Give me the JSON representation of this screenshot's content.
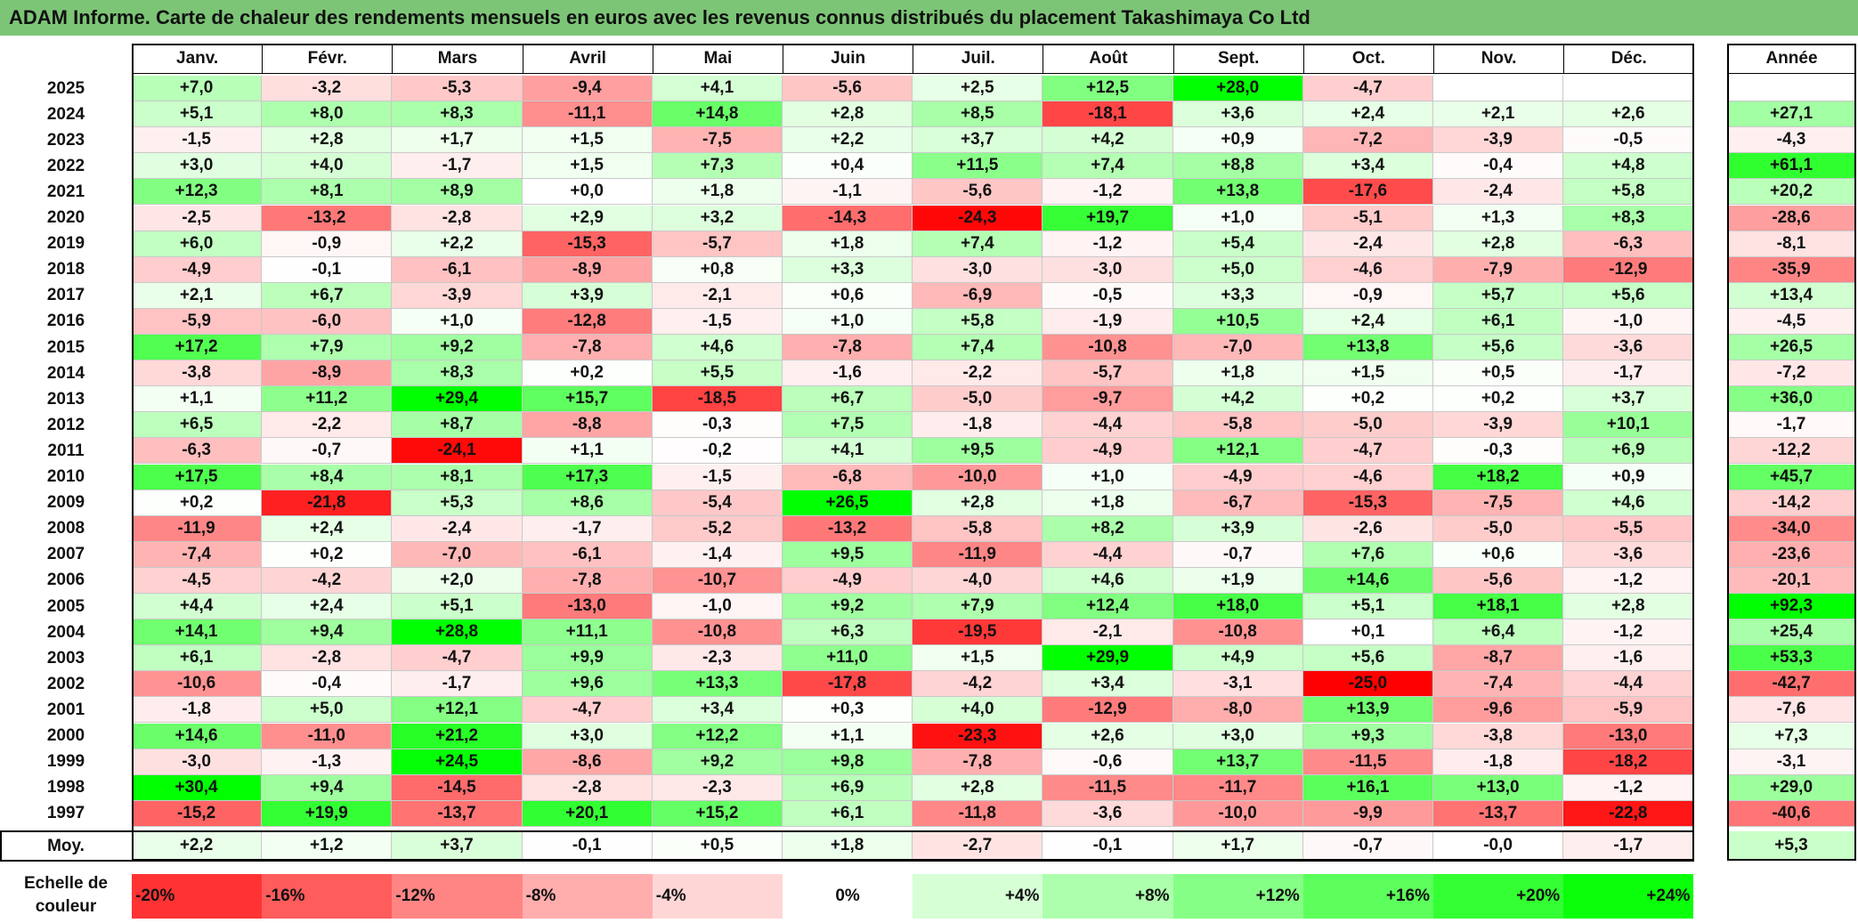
{
  "title": "ADAM Informe. Carte de chaleur des rendements mensuels en euros avec les revenus connus distribués du placement Takashimaya Co Ltd",
  "chart_data": {
    "type": "heatmap",
    "title": "ADAM Informe. Carte de chaleur des rendements mensuels en euros avec les revenus connus distribués du placement Takashimaya Co Ltd",
    "columns": [
      "Janv.",
      "Févr.",
      "Mars",
      "Avril",
      "Mai",
      "Juin",
      "Juil.",
      "Août",
      "Sept.",
      "Oct.",
      "Nov.",
      "Déc."
    ],
    "year_header": "Année",
    "rows": [
      {
        "year": "2025",
        "values": [
          "+7,0",
          "-3,2",
          "-5,3",
          "-9,4",
          "+4,1",
          "-5,6",
          "+2,5",
          "+12,5",
          "+28,0",
          "-4,7",
          "",
          ""
        ],
        "annual": ""
      },
      {
        "year": "2024",
        "values": [
          "+5,1",
          "+8,0",
          "+8,3",
          "-11,1",
          "+14,8",
          "+2,8",
          "+8,5",
          "-18,1",
          "+3,6",
          "+2,4",
          "+2,1",
          "+2,6"
        ],
        "annual": "+27,1"
      },
      {
        "year": "2023",
        "values": [
          "-1,5",
          "+2,8",
          "+1,7",
          "+1,5",
          "-7,5",
          "+2,2",
          "+3,7",
          "+4,2",
          "+0,9",
          "-7,2",
          "-3,9",
          "-0,5"
        ],
        "annual": "-4,3"
      },
      {
        "year": "2022",
        "values": [
          "+3,0",
          "+4,0",
          "-1,7",
          "+1,5",
          "+7,3",
          "+0,4",
          "+11,5",
          "+7,4",
          "+8,8",
          "+3,4",
          "-0,4",
          "+4,8"
        ],
        "annual": "+61,1"
      },
      {
        "year": "2021",
        "values": [
          "+12,3",
          "+8,1",
          "+8,9",
          "+0,0",
          "+1,8",
          "-1,1",
          "-5,6",
          "-1,2",
          "+13,8",
          "-17,6",
          "-2,4",
          "+5,8"
        ],
        "annual": "+20,2"
      },
      {
        "year": "2020",
        "values": [
          "-2,5",
          "-13,2",
          "-2,8",
          "+2,9",
          "+3,2",
          "-14,3",
          "-24,3",
          "+19,7",
          "+1,0",
          "-5,1",
          "+1,3",
          "+8,3"
        ],
        "annual": "-28,6"
      },
      {
        "year": "2019",
        "values": [
          "+6,0",
          "-0,9",
          "+2,2",
          "-15,3",
          "-5,7",
          "+1,8",
          "+7,4",
          "-1,2",
          "+5,4",
          "-2,4",
          "+2,8",
          "-6,3"
        ],
        "annual": "-8,1"
      },
      {
        "year": "2018",
        "values": [
          "-4,9",
          "-0,1",
          "-6,1",
          "-8,9",
          "+0,8",
          "+3,3",
          "-3,0",
          "-3,0",
          "+5,0",
          "-4,6",
          "-7,9",
          "-12,9"
        ],
        "annual": "-35,9"
      },
      {
        "year": "2017",
        "values": [
          "+2,1",
          "+6,7",
          "-3,9",
          "+3,9",
          "-2,1",
          "+0,6",
          "-6,9",
          "-0,5",
          "+3,3",
          "-0,9",
          "+5,7",
          "+5,6"
        ],
        "annual": "+13,4"
      },
      {
        "year": "2016",
        "values": [
          "-5,9",
          "-6,0",
          "+1,0",
          "-12,8",
          "-1,5",
          "+1,0",
          "+5,8",
          "-1,9",
          "+10,5",
          "+2,4",
          "+6,1",
          "-1,0"
        ],
        "annual": "-4,5"
      },
      {
        "year": "2015",
        "values": [
          "+17,2",
          "+7,9",
          "+9,2",
          "-7,8",
          "+4,6",
          "-7,8",
          "+7,4",
          "-10,8",
          "-7,0",
          "+13,8",
          "+5,6",
          "-3,6"
        ],
        "annual": "+26,5"
      },
      {
        "year": "2014",
        "values": [
          "-3,8",
          "-8,9",
          "+8,3",
          "+0,2",
          "+5,5",
          "-1,6",
          "-2,2",
          "-5,7",
          "+1,8",
          "+1,5",
          "+0,5",
          "-1,7"
        ],
        "annual": "-7,2"
      },
      {
        "year": "2013",
        "values": [
          "+1,1",
          "+11,2",
          "+29,4",
          "+15,7",
          "-18,5",
          "+6,7",
          "-5,0",
          "-9,7",
          "+4,2",
          "+0,2",
          "+0,2",
          "+3,7"
        ],
        "annual": "+36,0"
      },
      {
        "year": "2012",
        "values": [
          "+6,5",
          "-2,2",
          "+8,7",
          "-8,8",
          "-0,3",
          "+7,5",
          "-1,8",
          "-4,4",
          "-5,8",
          "-5,0",
          "-3,9",
          "+10,1"
        ],
        "annual": "-1,7"
      },
      {
        "year": "2011",
        "values": [
          "-6,3",
          "-0,7",
          "-24,1",
          "+1,1",
          "-0,2",
          "+4,1",
          "+9,5",
          "-4,9",
          "+12,1",
          "-4,7",
          "-0,3",
          "+6,9"
        ],
        "annual": "-12,2"
      },
      {
        "year": "2010",
        "values": [
          "+17,5",
          "+8,4",
          "+8,1",
          "+17,3",
          "-1,5",
          "-6,8",
          "-10,0",
          "+1,0",
          "-4,9",
          "-4,6",
          "+18,2",
          "+0,9"
        ],
        "annual": "+45,7"
      },
      {
        "year": "2009",
        "values": [
          "+0,2",
          "-21,8",
          "+5,3",
          "+8,6",
          "-5,4",
          "+26,5",
          "+2,8",
          "+1,8",
          "-6,7",
          "-15,3",
          "-7,5",
          "+4,6"
        ],
        "annual": "-14,2"
      },
      {
        "year": "2008",
        "values": [
          "-11,9",
          "+2,4",
          "-2,4",
          "-1,7",
          "-5,2",
          "-13,2",
          "-5,8",
          "+8,2",
          "+3,9",
          "-2,6",
          "-5,0",
          "-5,5"
        ],
        "annual": "-34,0"
      },
      {
        "year": "2007",
        "values": [
          "-7,4",
          "+0,2",
          "-7,0",
          "-6,1",
          "-1,4",
          "+9,5",
          "-11,9",
          "-4,4",
          "-0,7",
          "+7,6",
          "+0,6",
          "-3,6"
        ],
        "annual": "-23,6"
      },
      {
        "year": "2006",
        "values": [
          "-4,5",
          "-4,2",
          "+2,0",
          "-7,8",
          "-10,7",
          "-4,9",
          "-4,0",
          "+4,6",
          "+1,9",
          "+14,6",
          "-5,6",
          "-1,2"
        ],
        "annual": "-20,1"
      },
      {
        "year": "2005",
        "values": [
          "+4,4",
          "+2,4",
          "+5,1",
          "-13,0",
          "-1,0",
          "+9,2",
          "+7,9",
          "+12,4",
          "+18,0",
          "+5,1",
          "+18,1",
          "+2,8"
        ],
        "annual": "+92,3"
      },
      {
        "year": "2004",
        "values": [
          "+14,1",
          "+9,4",
          "+28,8",
          "+11,1",
          "-10,8",
          "+6,3",
          "-19,5",
          "-2,1",
          "-10,8",
          "+0,1",
          "+6,4",
          "-1,2"
        ],
        "annual": "+25,4"
      },
      {
        "year": "2003",
        "values": [
          "+6,1",
          "-2,8",
          "-4,7",
          "+9,9",
          "-2,3",
          "+11,0",
          "+1,5",
          "+29,9",
          "+4,9",
          "+5,6",
          "-8,7",
          "-1,6"
        ],
        "annual": "+53,3"
      },
      {
        "year": "2002",
        "values": [
          "-10,6",
          "-0,4",
          "-1,7",
          "+9,6",
          "+13,3",
          "-17,8",
          "-4,2",
          "+3,4",
          "-3,1",
          "-25,0",
          "-7,4",
          "-4,4"
        ],
        "annual": "-42,7"
      },
      {
        "year": "2001",
        "values": [
          "-1,8",
          "+5,0",
          "+12,1",
          "-4,7",
          "+3,4",
          "+0,3",
          "+4,0",
          "-12,9",
          "-8,0",
          "+13,9",
          "-9,6",
          "-5,9"
        ],
        "annual": "-7,6"
      },
      {
        "year": "2000",
        "values": [
          "+14,6",
          "-11,0",
          "+21,2",
          "+3,0",
          "+12,2",
          "+1,1",
          "-23,3",
          "+2,6",
          "+3,0",
          "+9,3",
          "-3,8",
          "-13,0"
        ],
        "annual": "+7,3"
      },
      {
        "year": "1999",
        "values": [
          "-3,0",
          "-1,3",
          "+24,5",
          "-8,6",
          "+9,2",
          "+9,8",
          "-7,8",
          "-0,6",
          "+13,7",
          "-11,5",
          "-1,8",
          "-18,2"
        ],
        "annual": "-3,1"
      },
      {
        "year": "1998",
        "values": [
          "+30,4",
          "+9,4",
          "-14,5",
          "-2,8",
          "-2,3",
          "+6,9",
          "+2,8",
          "-11,5",
          "-11,7",
          "+16,1",
          "+13,0",
          "-1,2"
        ],
        "annual": "+29,0"
      },
      {
        "year": "1997",
        "values": [
          "-15,2",
          "+19,9",
          "-13,7",
          "+20,1",
          "+15,2",
          "+6,1",
          "-11,8",
          "-3,6",
          "-10,0",
          "-9,9",
          "-13,7",
          "-22,8"
        ],
        "annual": "-40,6"
      }
    ],
    "average": {
      "label": "Moy.",
      "values": [
        "+2,2",
        "+1,2",
        "+3,7",
        "-0,1",
        "+0,5",
        "+1,8",
        "-2,7",
        "-0,1",
        "+1,7",
        "-0,7",
        "-0,0",
        "-1,7"
      ],
      "annual": "+5,3"
    },
    "scale": {
      "label": "Echelle de couleur",
      "steps": [
        "-20%",
        "-16%",
        "-12%",
        "-8%",
        "-4%",
        "0%",
        "+4%",
        "+8%",
        "+12%",
        "+16%",
        "+20%",
        "+24%"
      ]
    },
    "colors": {
      "negative_max": "#ff0000",
      "neutral": "#ffffff",
      "positive_max": "#00ff00"
    }
  }
}
